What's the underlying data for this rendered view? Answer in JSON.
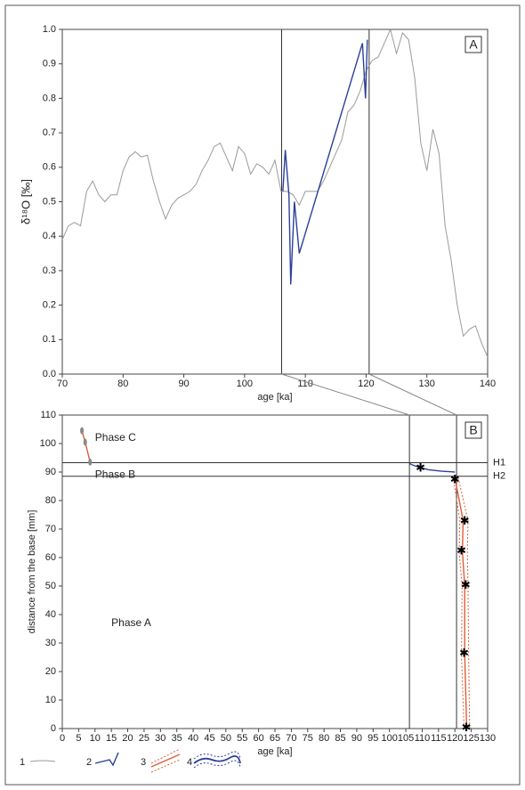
{
  "chart_data": [
    {
      "type": "line",
      "panel_label": "A",
      "xlabel": "age [ka]",
      "ylabel": "δ¹⁸O [‰]",
      "xlim": [
        70,
        140
      ],
      "xticks": [
        70,
        80,
        90,
        100,
        110,
        120,
        130,
        140
      ],
      "ylim": [
        0,
        1
      ],
      "yticks": [
        {
          "value": 0,
          "label": "0.0"
        },
        {
          "value": 0.1,
          "label": "0.1"
        },
        {
          "value": 0.2,
          "label": "0.2"
        },
        {
          "value": 0.3,
          "label": "0.3"
        },
        {
          "value": 0.4,
          "label": "0.4"
        },
        {
          "value": 0.5,
          "label": "0.5"
        },
        {
          "value": 0.6,
          "label": "0.6"
        },
        {
          "value": 0.7,
          "label": "0.7"
        },
        {
          "value": 0.8,
          "label": "0.8"
        },
        {
          "value": 0.9,
          "label": "0.9"
        },
        {
          "value": 1,
          "label": "1.0"
        }
      ],
      "vlines": [
        106.1,
        120.5
      ],
      "series": [
        {
          "name": "1",
          "color": "#9a9a9a",
          "x": [
            70,
            71,
            72,
            73,
            74,
            75,
            76,
            77,
            78,
            79,
            80,
            81,
            82,
            83,
            84,
            85,
            86,
            87,
            88,
            89,
            90,
            91,
            92,
            93,
            94,
            95,
            96,
            97,
            98,
            99,
            100,
            101,
            102,
            103,
            104,
            105,
            106,
            107,
            108,
            109,
            110,
            111,
            112,
            113,
            114,
            115,
            116,
            117,
            118,
            119,
            120,
            121,
            122,
            123,
            124,
            125,
            126,
            127,
            128,
            129,
            130,
            131,
            132,
            133,
            134,
            135,
            136,
            137,
            138,
            139,
            140
          ],
          "values": [
            0.39,
            0.43,
            0.44,
            0.43,
            0.53,
            0.56,
            0.52,
            0.5,
            0.52,
            0.52,
            0.59,
            0.63,
            0.645,
            0.63,
            0.635,
            0.56,
            0.5,
            0.45,
            0.49,
            0.51,
            0.52,
            0.53,
            0.55,
            0.59,
            0.62,
            0.66,
            0.67,
            0.63,
            0.59,
            0.66,
            0.64,
            0.58,
            0.61,
            0.6,
            0.58,
            0.62,
            0.53,
            0.53,
            0.52,
            0.49,
            0.53,
            0.53,
            0.53,
            0.56,
            0.6,
            0.64,
            0.68,
            0.76,
            0.78,
            0.82,
            0.88,
            0.91,
            0.92,
            0.96,
            1.0,
            0.93,
            0.99,
            0.97,
            0.86,
            0.67,
            0.59,
            0.71,
            0.64,
            0.43,
            0.33,
            0.2,
            0.11,
            0.13,
            0.14,
            0.09,
            0.05
          ]
        },
        {
          "name": "2",
          "color": "#2b3f9a",
          "x": [
            106.3,
            106.7,
            107.3,
            107.6,
            108.2,
            109,
            119.4,
            119.9,
            120.2
          ],
          "values": [
            0.53,
            0.65,
            0.52,
            0.26,
            0.5,
            0.35,
            0.96,
            0.8,
            0.97
          ]
        }
      ]
    },
    {
      "type": "scatter",
      "panel_label": "B",
      "xlabel": "age [ka]",
      "ylabel": "distance from the base [mm]",
      "xlim": [
        0,
        130
      ],
      "xticks": [
        0,
        5,
        10,
        15,
        20,
        25,
        30,
        35,
        40,
        45,
        50,
        55,
        60,
        65,
        70,
        75,
        80,
        85,
        90,
        95,
        100,
        105,
        110,
        115,
        120,
        125,
        130
      ],
      "ylim": [
        0,
        110
      ],
      "yticks": [
        0,
        10,
        20,
        30,
        40,
        50,
        60,
        70,
        80,
        90,
        100,
        110
      ],
      "vlines": [
        106.1,
        120.5
      ],
      "hlines": [
        {
          "value": 93.3,
          "label": "H1"
        },
        {
          "value": 88.5,
          "label": "H2"
        }
      ],
      "annotations": [
        "Phase C",
        "Phase B",
        "Phase A"
      ],
      "series": [
        {
          "name": "3",
          "color": "#d9603b",
          "x": [
            120,
            122.5,
            122.3,
            123,
            123,
            123.6
          ],
          "values": [
            88,
            73,
            62,
            50,
            26,
            0
          ],
          "x_low": [
            119.5,
            121.5,
            121.3,
            122.2,
            122,
            122.8
          ],
          "x_high": [
            121,
            124,
            123.8,
            124,
            124.2,
            124.5
          ]
        },
        {
          "name": "4",
          "color": "#2b3f9a",
          "x": [
            106.1,
            107,
            109.5,
            112,
            116,
            120
          ],
          "values": [
            93,
            92.5,
            91.5,
            90.8,
            90.3,
            90
          ]
        },
        {
          "color": "#d9603b",
          "marker_color": "#888888",
          "x": [
            6,
            7,
            8.5
          ],
          "values": [
            104.5,
            100.5,
            93.5
          ]
        },
        {
          "color": "#000000",
          "marker": "star",
          "x": [
            109.5,
            120,
            123,
            122,
            123.3,
            122.8,
            123.5
          ],
          "values": [
            91.5,
            87.5,
            73,
            62.5,
            50.5,
            26.5,
            0.5
          ]
        }
      ]
    }
  ]
}
